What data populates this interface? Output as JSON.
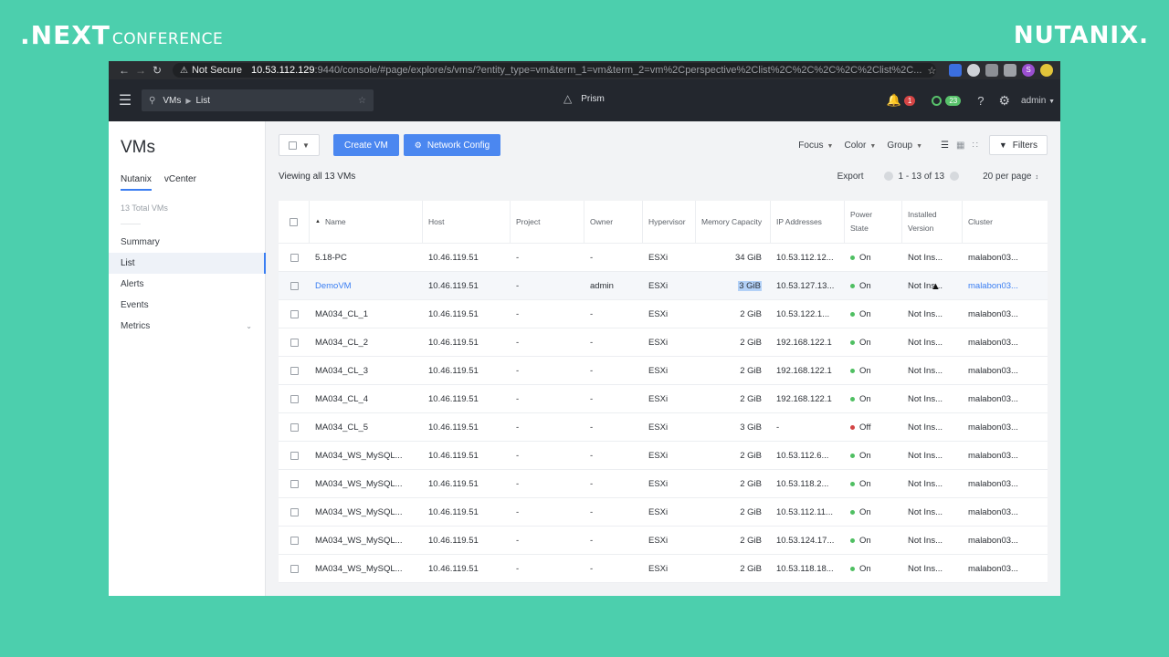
{
  "brand": {
    "next": ".NEXT",
    "conference": "CONFERENCE",
    "right_logo": "NUTANIX."
  },
  "browser": {
    "security": "Not Secure",
    "url_host": "10.53.112.129",
    "url_path": ":9440/console/#page/explore/s/vms/?entity_type=vm&term_1=vm&term_2=vm%2Cperspective%2Clist%2C%2C%2C%2C%2Clist%2C...",
    "profile_initial": "S"
  },
  "header": {
    "breadcrumb_1": "VMs",
    "breadcrumb_2": "List",
    "app_name": "Prism",
    "alerts_count": "1",
    "tasks_count": "23",
    "user": "admin"
  },
  "sidebar": {
    "title": "VMs",
    "tabs": [
      "Nutanix",
      "vCenter"
    ],
    "total": "13 Total VMs",
    "items": [
      "Summary",
      "List",
      "Alerts",
      "Events",
      "Metrics"
    ]
  },
  "toolbar": {
    "create_vm": "Create VM",
    "network_config": "Network Config",
    "focus": "Focus",
    "color": "Color",
    "group": "Group",
    "filters": "Filters"
  },
  "subbar": {
    "viewing": "Viewing all 13 VMs",
    "export": "Export",
    "range": "1 - 13 of 13",
    "per_page": "20 per page"
  },
  "table": {
    "headers": {
      "name": "Name",
      "host": "Host",
      "project": "Project",
      "owner": "Owner",
      "hypervisor": "Hypervisor",
      "memory": "Memory Capacity",
      "ip": "IP Addresses",
      "power_1": "Power",
      "power_2": "State",
      "version_1": "Installed",
      "version_2": "Version",
      "cluster": "Cluster"
    },
    "rows": [
      {
        "name": "5.18-PC",
        "host": "10.46.119.51",
        "project": "-",
        "owner": "-",
        "hyp": "ESXi",
        "mem": "34 GiB",
        "ip": "10.53.112.12...",
        "power": "On",
        "version": "Not Ins...",
        "cluster": "malabon03..."
      },
      {
        "name": "DemoVM",
        "host": "10.46.119.51",
        "project": "-",
        "owner": "admin",
        "hyp": "ESXi",
        "mem": "3 GiB",
        "ip": "10.53.127.13...",
        "power": "On",
        "version": "Not Ins...",
        "cluster": "malabon03..."
      },
      {
        "name": "MA034_CL_1",
        "host": "10.46.119.51",
        "project": "-",
        "owner": "-",
        "hyp": "ESXi",
        "mem": "2 GiB",
        "ip": "10.53.122.1...",
        "power": "On",
        "version": "Not Ins...",
        "cluster": "malabon03..."
      },
      {
        "name": "MA034_CL_2",
        "host": "10.46.119.51",
        "project": "-",
        "owner": "-",
        "hyp": "ESXi",
        "mem": "2 GiB",
        "ip": "192.168.122.1",
        "power": "On",
        "version": "Not Ins...",
        "cluster": "malabon03..."
      },
      {
        "name": "MA034_CL_3",
        "host": "10.46.119.51",
        "project": "-",
        "owner": "-",
        "hyp": "ESXi",
        "mem": "2 GiB",
        "ip": "192.168.122.1",
        "power": "On",
        "version": "Not Ins...",
        "cluster": "malabon03..."
      },
      {
        "name": "MA034_CL_4",
        "host": "10.46.119.51",
        "project": "-",
        "owner": "-",
        "hyp": "ESXi",
        "mem": "2 GiB",
        "ip": "192.168.122.1",
        "power": "On",
        "version": "Not Ins...",
        "cluster": "malabon03..."
      },
      {
        "name": "MA034_CL_5",
        "host": "10.46.119.51",
        "project": "-",
        "owner": "-",
        "hyp": "ESXi",
        "mem": "3 GiB",
        "ip": "-",
        "power": "Off",
        "version": "Not Ins...",
        "cluster": "malabon03..."
      },
      {
        "name": "MA034_WS_MySQL...",
        "host": "10.46.119.51",
        "project": "-",
        "owner": "-",
        "hyp": "ESXi",
        "mem": "2 GiB",
        "ip": "10.53.112.6...",
        "power": "On",
        "version": "Not Ins...",
        "cluster": "malabon03..."
      },
      {
        "name": "MA034_WS_MySQL...",
        "host": "10.46.119.51",
        "project": "-",
        "owner": "-",
        "hyp": "ESXi",
        "mem": "2 GiB",
        "ip": "10.53.118.2...",
        "power": "On",
        "version": "Not Ins...",
        "cluster": "malabon03..."
      },
      {
        "name": "MA034_WS_MySQL...",
        "host": "10.46.119.51",
        "project": "-",
        "owner": "-",
        "hyp": "ESXi",
        "mem": "2 GiB",
        "ip": "10.53.112.11...",
        "power": "On",
        "version": "Not Ins...",
        "cluster": "malabon03..."
      },
      {
        "name": "MA034_WS_MySQL...",
        "host": "10.46.119.51",
        "project": "-",
        "owner": "-",
        "hyp": "ESXi",
        "mem": "2 GiB",
        "ip": "10.53.124.17...",
        "power": "On",
        "version": "Not Ins...",
        "cluster": "malabon03..."
      },
      {
        "name": "MA034_WS_MySQL...",
        "host": "10.46.119.51",
        "project": "-",
        "owner": "-",
        "hyp": "ESXi",
        "mem": "2 GiB",
        "ip": "10.53.118.18...",
        "power": "On",
        "version": "Not Ins...",
        "cluster": "malabon03..."
      }
    ]
  },
  "colors": {
    "accent": "#4b87f0",
    "on": "#4fbf62",
    "off": "#d24444",
    "background": "#4ccfad"
  },
  "icons": [
    "back-icon",
    "forward-icon",
    "reload-icon",
    "warning-icon",
    "star-icon",
    "menu-icon",
    "search-icon",
    "prism-logo-icon",
    "bell-icon",
    "status-ring-icon",
    "help-icon",
    "gear-icon",
    "filter-icon",
    "list-view-icon",
    "grid-view-icon",
    "tile-view-icon"
  ]
}
